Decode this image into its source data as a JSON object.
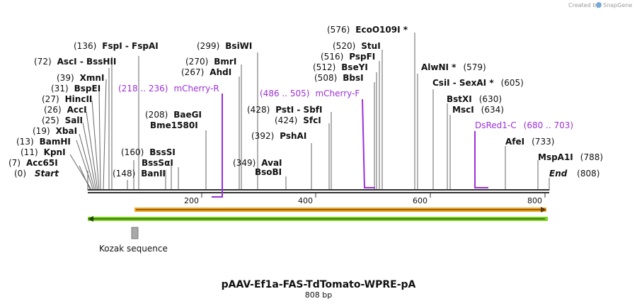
{
  "credit": {
    "prefix": "Created by",
    "brand": "SnapGene"
  },
  "title": "pAAV-Ef1a-FAS-TdTomato-WPRE-pA",
  "subtitle": "808 bp",
  "ticks": [
    "200",
    "400",
    "600",
    "800"
  ],
  "start_label": {
    "pos": "(0)",
    "name": "Start"
  },
  "end_label": {
    "pos": "(808)",
    "name": "End"
  },
  "sites_left": [
    {
      "pos": "(7)",
      "name": "Acc65I"
    },
    {
      "pos": "(11)",
      "name": "KpnI"
    },
    {
      "pos": "(13)",
      "name": "BamHI"
    },
    {
      "pos": "(19)",
      "name": "XbaI"
    },
    {
      "pos": "(25)",
      "name": "SalI"
    },
    {
      "pos": "(26)",
      "name": "AccI"
    },
    {
      "pos": "(27)",
      "name": "HincII"
    },
    {
      "pos": "(31)",
      "name": "BspEI"
    },
    {
      "pos": "(39)",
      "name": "XmnI"
    },
    {
      "pos": "(72)",
      "name": "AscI - BssHII"
    },
    {
      "pos": "(136)",
      "name": "FspI - FspAI"
    }
  ],
  "sites_mid": [
    {
      "pos": "(148)",
      "name": "BanII"
    },
    {
      "pos": "(160)",
      "name": "BssSαI"
    },
    {
      "pos": "(160)",
      "name": "BssSI"
    },
    {
      "pos": "(208)",
      "name": "Bme1580I"
    },
    {
      "pos": "(208)",
      "name": "BaeGI"
    },
    {
      "pos": "(267)",
      "name": "AhdI"
    },
    {
      "pos": "(270)",
      "name": "BmrI"
    },
    {
      "pos": "(299)",
      "name": "BsiWI"
    },
    {
      "pos": "(349)",
      "name": "BsoBI"
    },
    {
      "pos": "(349)",
      "name": "AvaI"
    },
    {
      "pos": "(392)",
      "name": "PshAI"
    },
    {
      "pos": "(424)",
      "name": "SfcI"
    },
    {
      "pos": "(428)",
      "name": "PstI - SbfI"
    },
    {
      "pos": "(508)",
      "name": "BbsI"
    },
    {
      "pos": "(512)",
      "name": "BseYI"
    },
    {
      "pos": "(516)",
      "name": "PspFI"
    },
    {
      "pos": "(520)",
      "name": "StuI"
    },
    {
      "pos": "(576)",
      "name": "EcoO109I *"
    }
  ],
  "sites_right": [
    {
      "pos": "(579)",
      "name": "AlwNI *"
    },
    {
      "pos": "(605)",
      "name": "CsiI - SexAI *"
    },
    {
      "pos": "(630)",
      "name": "BstXI"
    },
    {
      "pos": "(634)",
      "name": "MscI"
    },
    {
      "pos": "(733)",
      "name": "AfeI"
    },
    {
      "pos": "(788)",
      "name": "MspA1I"
    }
  ],
  "primers": [
    {
      "range": "(218 .. 236)",
      "name": "mCherry-R"
    },
    {
      "range": "(486 .. 505)",
      "name": "mCherry-F"
    },
    {
      "range": "(680 .. 703)",
      "name": "DsRed1-C"
    }
  ],
  "features": {
    "kozak": "Kozak sequence"
  },
  "colors": {
    "primer": "#9b30d9",
    "orange_feature": "#f5a623",
    "green_feature": "#7ed321",
    "backbone": "#333333",
    "kozak": "#a9a9a9"
  }
}
